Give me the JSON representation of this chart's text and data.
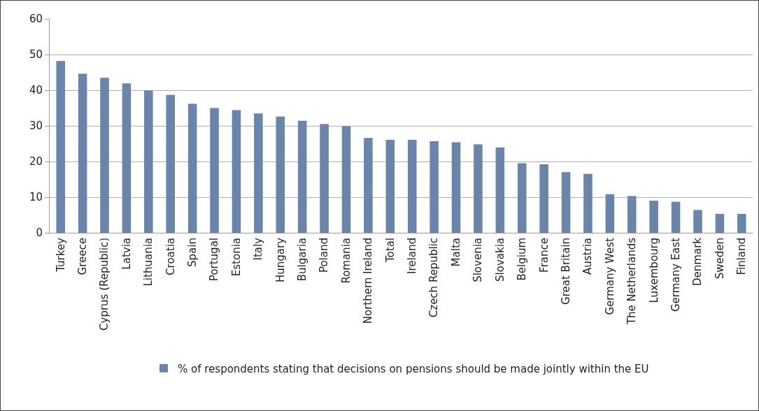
{
  "chart_data": {
    "type": "bar",
    "categories": [
      "Turkey",
      "Greece",
      "Cyprus (Republic)",
      "Latvia",
      "Lithuania",
      "Croatia",
      "Spain",
      "Portugal",
      "Estonia",
      "Italy",
      "Hungary",
      "Bulgaria",
      "Poland",
      "Romania",
      "Northern Ireland",
      "Total",
      "Ireland",
      "Czech Republic",
      "Malta",
      "Slovenia",
      "Slovakia",
      "Belgium",
      "France",
      "Great Britain",
      "Austria",
      "Germany West",
      "The Netherlands",
      "Luxembourg",
      "Germany East",
      "Denmark",
      "Sweden",
      "Finland"
    ],
    "series": [
      {
        "name": "% of respondents stating that decisions on pensions should be made jointly within the EU",
        "color": "#6b84aa",
        "values": [
          48.2,
          44.6,
          43.5,
          41.9,
          39.9,
          38.7,
          36.2,
          35.0,
          34.4,
          33.5,
          32.6,
          31.4,
          30.5,
          29.9,
          26.6,
          26.1,
          26.1,
          25.7,
          25.4,
          24.8,
          23.9,
          19.5,
          19.2,
          17.0,
          16.5,
          10.8,
          10.3,
          9.0,
          8.7,
          6.4,
          5.3,
          5.3
        ]
      }
    ],
    "ylim": [
      0,
      60
    ],
    "yticks": [
      0,
      10,
      20,
      30,
      40,
      50,
      60
    ],
    "grid": "y",
    "legend": "bottom"
  }
}
